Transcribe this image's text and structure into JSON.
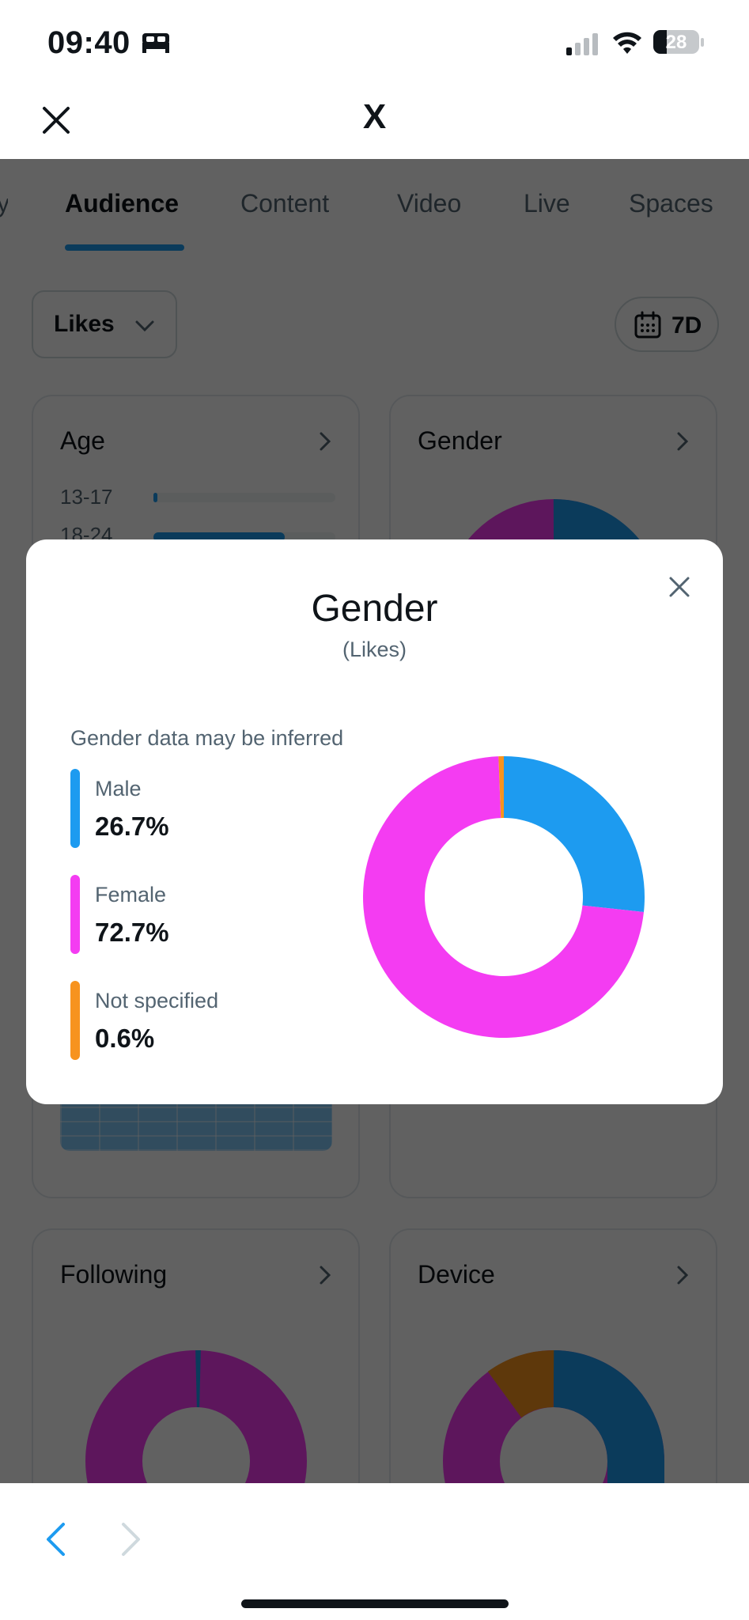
{
  "status_bar": {
    "time": "09:40",
    "battery": "28",
    "icons": [
      "sleep-icon",
      "cellular-signal-icon",
      "wifi-icon",
      "battery-icon"
    ]
  },
  "header": {
    "title": "X",
    "close_icon": "close-icon"
  },
  "tabs": [
    {
      "label": "Audience",
      "active": true
    },
    {
      "label": "Content",
      "active": false
    },
    {
      "label": "Video",
      "active": false
    },
    {
      "label": "Live",
      "active": false
    },
    {
      "label": "Spaces",
      "active": false
    }
  ],
  "filters": {
    "metric": "Likes",
    "range": "7D"
  },
  "cards": {
    "age": {
      "title": "Age",
      "rows": [
        {
          "label": "13-17",
          "fraction": 0.02
        },
        {
          "label": "18-24",
          "fraction": 0.72
        }
      ]
    },
    "gender": {
      "title": "Gender"
    },
    "following": {
      "title": "Following"
    },
    "device": {
      "title": "Device"
    }
  },
  "modal": {
    "title": "Gender",
    "subtitle": "(Likes)",
    "note": "Gender data may be inferred",
    "legend": [
      {
        "name": "Male",
        "value": "26.7%",
        "color": "#1d9bf0"
      },
      {
        "name": "Female",
        "value": "72.7%",
        "color": "#f43cf2"
      },
      {
        "name": "Not specified",
        "value": "0.6%",
        "color": "#f7931e"
      }
    ]
  },
  "chart_data": {
    "type": "pie",
    "variant": "donut",
    "categories": [
      "Male",
      "Female",
      "Not specified"
    ],
    "values": [
      26.7,
      72.7,
      0.6
    ],
    "colors": [
      "#1d9bf0",
      "#f43cf2",
      "#f7931e"
    ],
    "start": "top",
    "direction": "clockwise"
  },
  "bottom_nav": {
    "back_icon": "chevron-left-icon",
    "forward_icon": "chevron-right-icon"
  }
}
